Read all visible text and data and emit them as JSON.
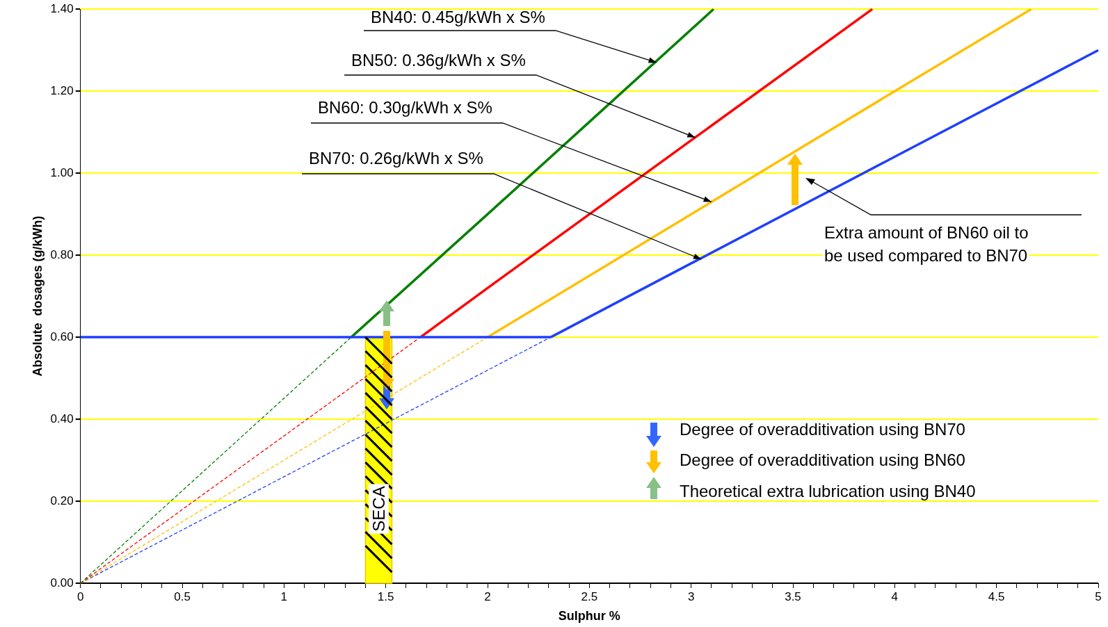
{
  "chart_data": {
    "type": "line",
    "xlabel": "Sulphur %",
    "ylabel": "Absolute  dosages (g/kWh)",
    "xlim": [
      0,
      5
    ],
    "xticks": [
      0,
      {
        "value": 0.1,
        "label": null
      },
      {
        "value": 0.2,
        "label": null
      },
      {
        "value": 0.3,
        "label": null
      },
      {
        "value": 0.4,
        "label": null
      },
      0.5,
      {
        "value": 0.6,
        "label": null
      },
      {
        "value": 0.7,
        "label": null
      },
      {
        "value": 0.8,
        "label": null
      },
      {
        "value": 0.9,
        "label": null
      },
      1,
      {
        "value": 1.1,
        "label": null
      },
      {
        "value": 1.2,
        "label": null
      },
      {
        "value": 1.3,
        "label": null
      },
      {
        "value": 1.4,
        "label": null
      },
      1.5,
      {
        "value": 1.6,
        "label": null
      },
      {
        "value": 1.7,
        "label": null
      },
      {
        "value": 1.8,
        "label": null
      },
      {
        "value": 1.9,
        "label": null
      },
      2,
      {
        "value": 2.1,
        "label": null
      },
      {
        "value": 2.2,
        "label": null
      },
      {
        "value": 2.3,
        "label": null
      },
      {
        "value": 2.4,
        "label": null
      },
      2.5,
      {
        "value": 2.6,
        "label": null
      },
      {
        "value": 2.7,
        "label": null
      },
      {
        "value": 2.8,
        "label": null
      },
      {
        "value": 2.9,
        "label": null
      },
      3,
      {
        "value": 3.1,
        "label": null
      },
      {
        "value": 3.2,
        "label": null
      },
      {
        "value": 3.3,
        "label": null
      },
      {
        "value": 3.4,
        "label": null
      },
      3.5,
      {
        "value": 3.6,
        "label": null
      },
      {
        "value": 3.7,
        "label": null
      },
      {
        "value": 3.8,
        "label": null
      },
      {
        "value": 3.9,
        "label": null
      },
      4,
      {
        "value": 4.1,
        "label": null
      },
      {
        "value": 4.2,
        "label": null
      },
      {
        "value": 4.3,
        "label": null
      },
      {
        "value": 4.4,
        "label": null
      },
      4.5,
      {
        "value": 4.6,
        "label": null
      },
      {
        "value": 4.7,
        "label": null
      },
      {
        "value": 4.8,
        "label": null
      },
      {
        "value": 4.9,
        "label": null
      },
      5
    ],
    "ylim": [
      0,
      1.4
    ],
    "yticks": [
      {
        "value": 0,
        "label": "0.00"
      },
      {
        "value": 0.2,
        "label": "0.20"
      },
      {
        "value": 0.4,
        "label": "0.40"
      },
      {
        "value": 0.6,
        "label": "0.60"
      },
      {
        "value": 0.8,
        "label": "0.80"
      },
      {
        "value": 1,
        "label": "1.00"
      },
      {
        "value": 1.2,
        "label": "1.20"
      },
      {
        "value": 1.4,
        "label": "1.40"
      }
    ],
    "grid": "y",
    "marker": "none",
    "legend": false,
    "series": [
      {
        "color": "#1f3fff",
        "x": [
          0,
          2.31
        ],
        "values": [
          0.6,
          0.6
        ]
      },
      {
        "color": "#008000",
        "line_style": "dashed",
        "x": [
          0,
          1.33
        ],
        "values": [
          0,
          0.6
        ]
      },
      {
        "color": "#ff0000",
        "line_style": "dashed",
        "x": [
          0,
          1.67
        ],
        "values": [
          0,
          0.6
        ]
      },
      {
        "color": "#ffc000",
        "line_style": "dashed",
        "x": [
          0,
          2
        ],
        "values": [
          0,
          0.6
        ]
      },
      {
        "color": "#1f3fff",
        "line_style": "dashed",
        "x": [
          0,
          2.31
        ],
        "values": [
          0,
          0.6
        ]
      },
      {
        "color": "#008000",
        "x": [
          1.33,
          2,
          2.5,
          3.11
        ],
        "values": [
          0.6,
          0.9,
          1.125,
          1.4
        ]
      },
      {
        "color": "#ff0000",
        "x": [
          1.67,
          2,
          3,
          3.89
        ],
        "values": [
          0.6,
          0.72,
          1.08,
          1.4
        ]
      },
      {
        "color": "#ffc000",
        "x": [
          2,
          3,
          4,
          4.67
        ],
        "values": [
          0.6,
          0.9,
          1.2,
          1.4
        ]
      },
      {
        "color": "#1f3fff",
        "x": [
          2.31,
          3,
          4,
          5
        ],
        "values": [
          0.6,
          0.78,
          1.04,
          1.3
        ]
      }
    ],
    "bands": [
      {
        "axis": "x",
        "from": 1.4,
        "to": 1.53,
        "label": "SECA",
        "color": "#ffff00"
      }
    ],
    "annotations": [
      {
        "text": "BN40: 0.45g/kWh x S%",
        "x": 2.83,
        "y": 1.27
      },
      {
        "text": "BN50: 0.36g/kWh x S%",
        "x": 3.02,
        "y": 1.087
      },
      {
        "text": "BN60: 0.30g/kWh x S%",
        "x": 3.1,
        "y": 0.93
      },
      {
        "text": "BN70: 0.26g/kWh x S%",
        "x": 3.05,
        "y": 0.79
      },
      "Extra amount of BN60 oil to\nbe used compared to BN70",
      "Degree of overadditivation using BN70",
      "Degree of overadditivation using BN60",
      "Theoretical extra lubrication using BN40"
    ]
  }
}
